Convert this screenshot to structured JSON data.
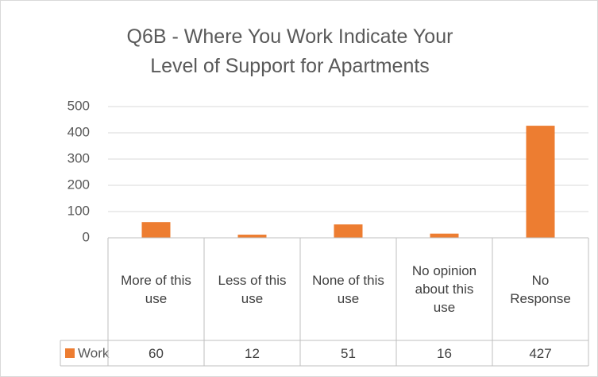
{
  "chart_data": {
    "type": "bar",
    "title": "Q6B - Where You Work Indicate Your Level of Support for Apartments",
    "categories": [
      "More of this use",
      "Less of this use",
      "None of this use",
      "No opinion about this use",
      "No Response"
    ],
    "series": [
      {
        "name": "Work",
        "color": "#ed7d31",
        "values": [
          60,
          12,
          51,
          16,
          427
        ]
      }
    ],
    "ylim": [
      0,
      500
    ],
    "yticks": [
      0,
      100,
      200,
      300,
      400,
      500
    ],
    "grid": true,
    "data_table": true
  }
}
